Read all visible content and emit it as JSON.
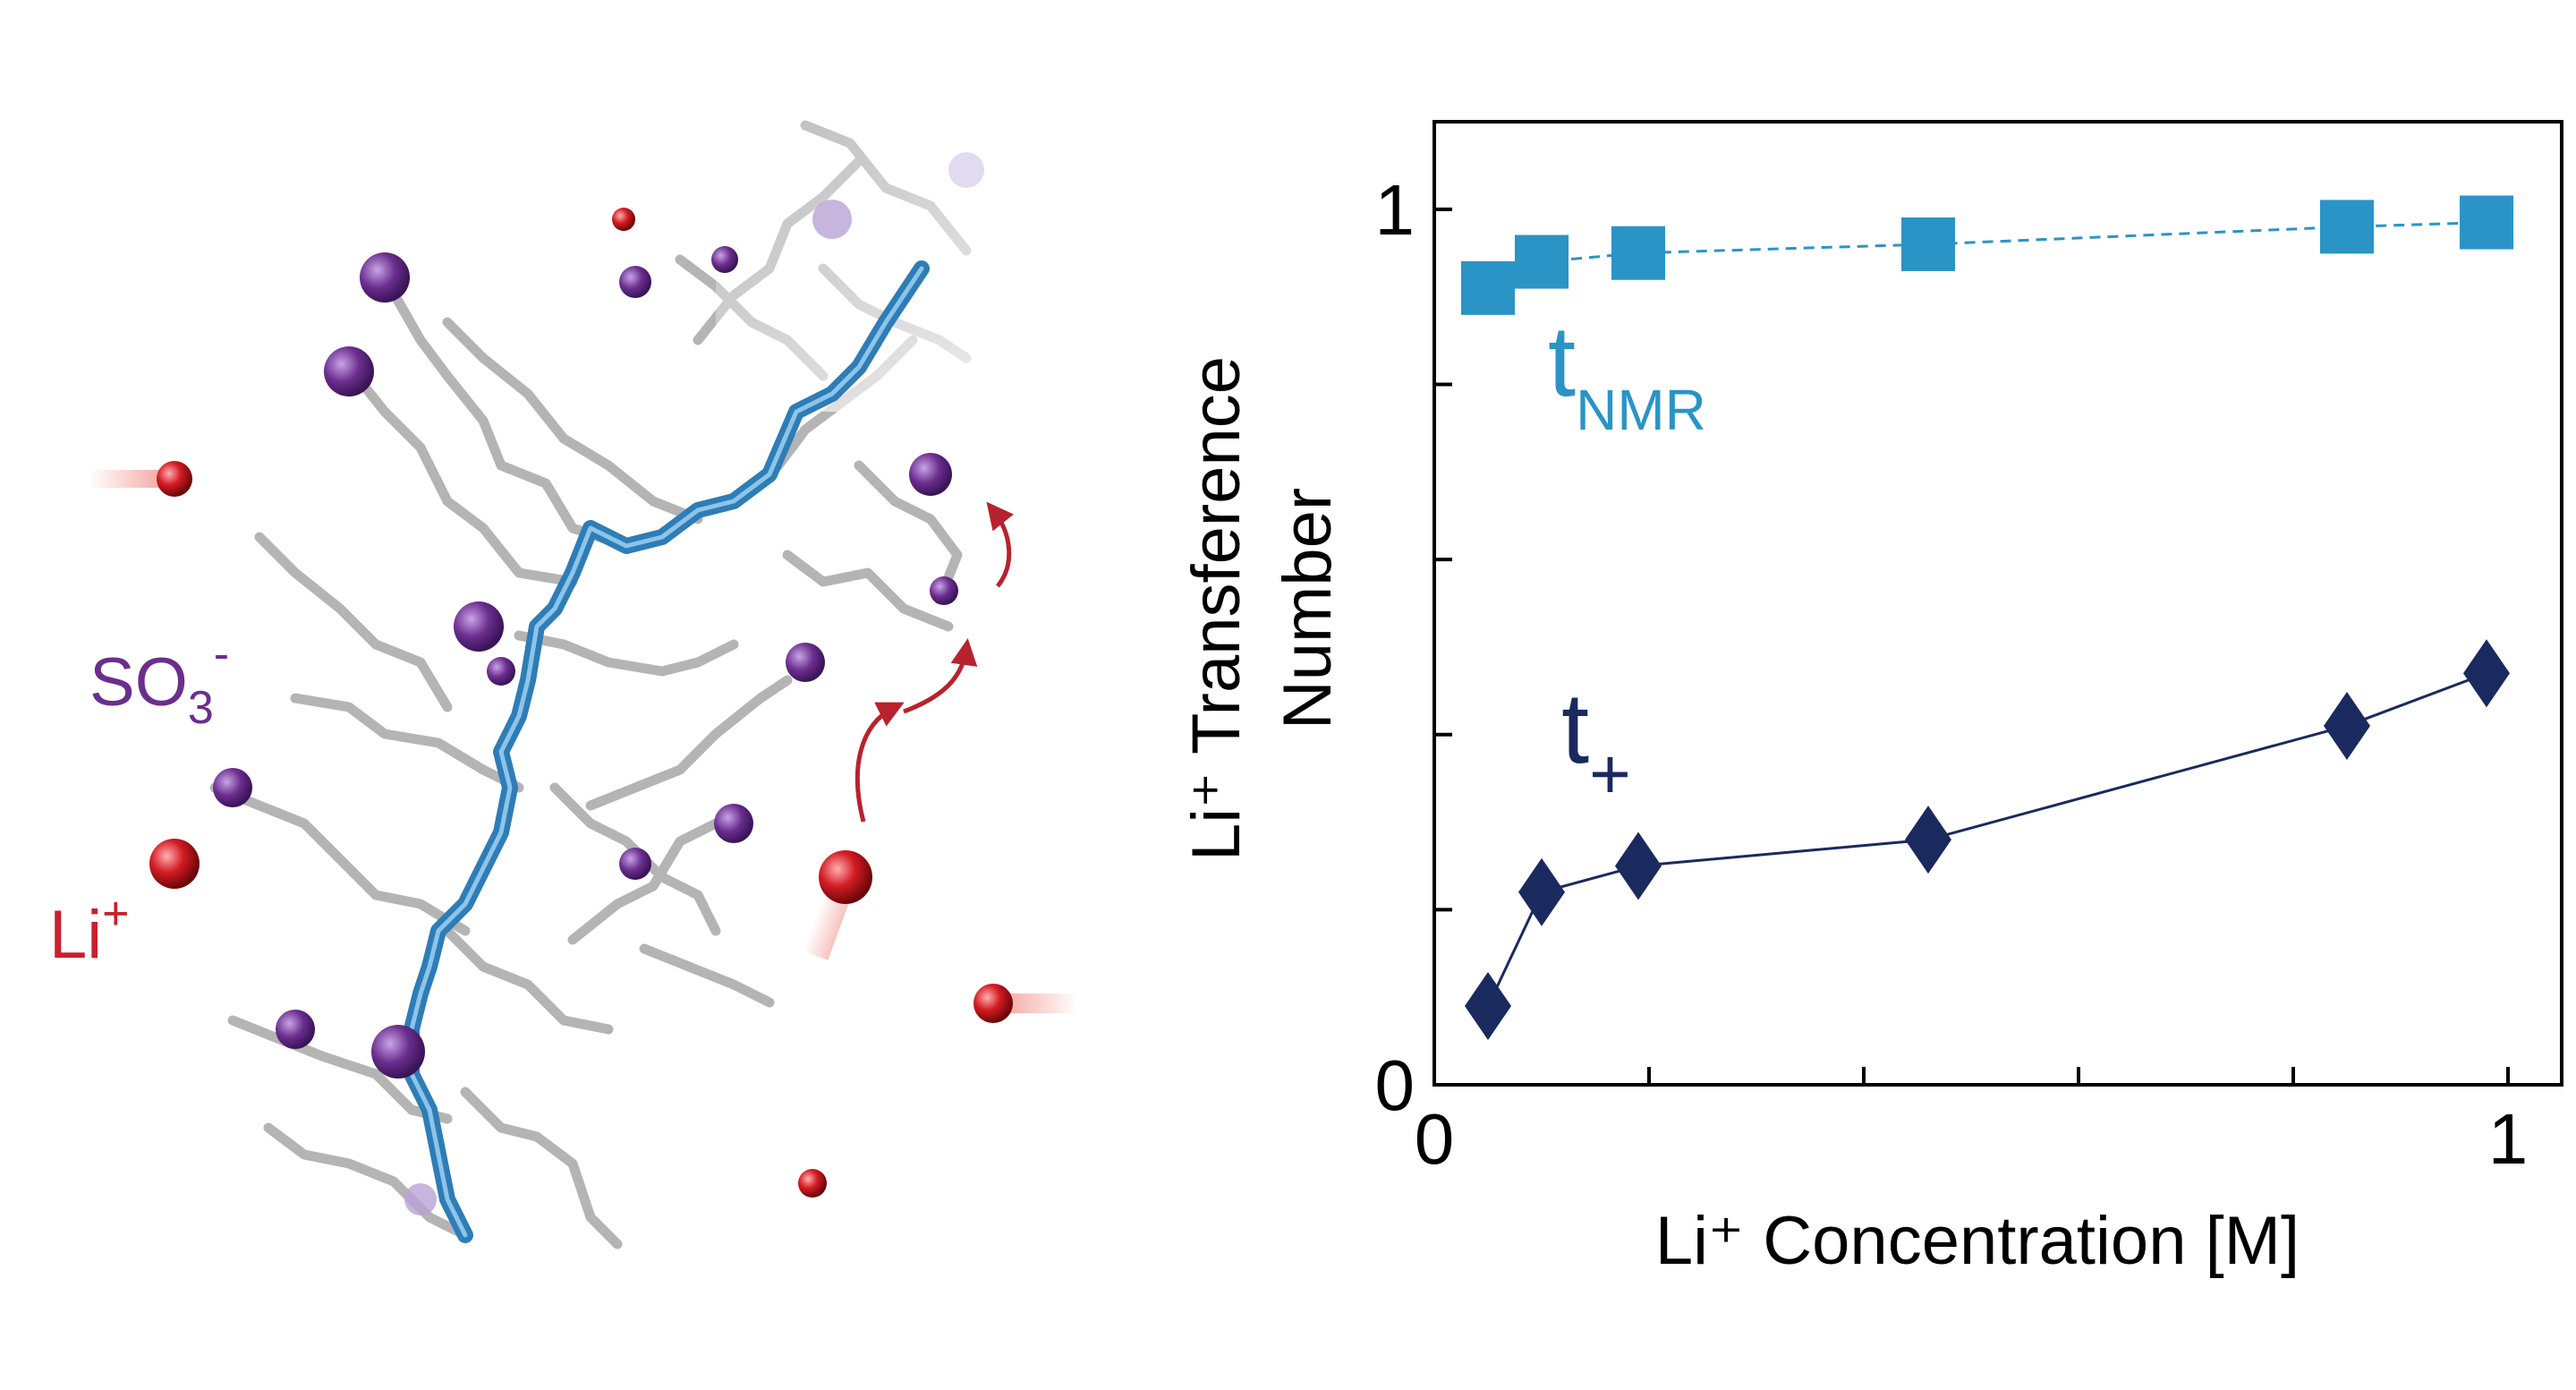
{
  "labels": {
    "so3_main": "SO",
    "so3_sub": "3",
    "so3_sup": "-",
    "li_main": "Li",
    "li_sup": "+"
  },
  "colors": {
    "tnmr": "#2a94c6",
    "tplus": "#1a2a5e",
    "so3": "#6b2e8e",
    "li": "#c8202e",
    "arrow": "#b8222e",
    "axis": "#000000",
    "backbone": "#2e7db6",
    "side_chain": "#b4b4b4"
  },
  "chart_data": {
    "type": "scatter",
    "xlabel": "Li⁺ Concentration [M]",
    "ylabel_line1": "Li⁺ Transference",
    "ylabel_line2": "Number",
    "xlim": [
      0,
      1.05
    ],
    "ylim": [
      0,
      1.1
    ],
    "x_tick_values": [
      0,
      0.2,
      0.4,
      0.6,
      0.8,
      1.0
    ],
    "x_tick_labels": [
      "0",
      "",
      "",
      "",
      "",
      "1"
    ],
    "y_tick_values": [
      0,
      0.2,
      0.4,
      0.6,
      0.8,
      1.0
    ],
    "y_tick_labels": [
      "0",
      "",
      "",
      "",
      "",
      "1"
    ],
    "grid": false,
    "series": [
      {
        "name_main": "t",
        "name_sub": "NMR",
        "marker": "square",
        "line": "dashed",
        "x": [
          0.05,
          0.1,
          0.19,
          0.46,
          0.85,
          0.98
        ],
        "y": [
          0.91,
          0.94,
          0.95,
          0.96,
          0.98,
          0.985
        ]
      },
      {
        "name_main": "t",
        "name_sub": "+",
        "marker": "diamond",
        "line": "solid",
        "x": [
          0.05,
          0.1,
          0.19,
          0.46,
          0.85,
          0.98
        ],
        "y": [
          0.09,
          0.22,
          0.25,
          0.28,
          0.41,
          0.47
        ]
      }
    ]
  }
}
